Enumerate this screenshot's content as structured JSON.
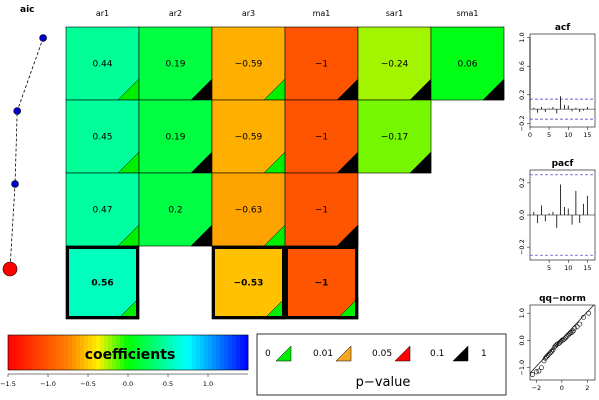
{
  "chart_data": {
    "type": "heatmap",
    "title": "aic",
    "columns": [
      "ar1",
      "ar2",
      "ar3",
      "ma1",
      "sar1",
      "sma1"
    ],
    "rows": [
      {
        "values": [
          0.44,
          0.19,
          -0.59,
          -1,
          -0.24,
          0.06
        ],
        "pvalue_class": [
          "0-0.01",
          "0.1-1",
          "0-0.01",
          "0.1-1",
          "0.1-1",
          "0.1-1"
        ]
      },
      {
        "values": [
          0.45,
          0.19,
          -0.59,
          -1,
          -0.17,
          null
        ],
        "pvalue_class": [
          "0-0.01",
          "0.1-1",
          "0-0.01",
          "0.1-1",
          "0.1-1",
          null
        ]
      },
      {
        "values": [
          0.47,
          0.2,
          -0.63,
          -1,
          null,
          null
        ],
        "pvalue_class": [
          "0-0.01",
          "0.1-1",
          "0-0.01",
          "0.1-1",
          null,
          null
        ]
      },
      {
        "values": [
          0.56,
          null,
          -0.53,
          -1,
          null,
          null
        ],
        "pvalue_class": [
          "0-0.01",
          null,
          "0-0.01",
          "0-0.01",
          null,
          null
        ],
        "best": true
      }
    ],
    "aic_path": {
      "relative_values": [
        0.92,
        0.2,
        0.14,
        0.0
      ]
    },
    "coefficient_legend": {
      "label": "coefficients",
      "range": [
        -1.5,
        1.5
      ],
      "ticks": [
        "−1.5",
        "−1.0",
        "−0.5",
        "0.0",
        "0.5",
        "1.0"
      ],
      "tick_values": [
        -1.5,
        -1.0,
        -0.5,
        0.0,
        0.5,
        1.0
      ]
    },
    "pvalue_legend": {
      "label": "p−value",
      "breaks": [
        "0",
        "0.01",
        "0.05",
        "0.1",
        "1"
      ],
      "colors": [
        "#00ee00",
        "#f5a623",
        "#ff0000",
        "#000000"
      ]
    },
    "acf": {
      "title": "acf",
      "y_ticks": [
        "1.0",
        "0.6",
        "0.2",
        "−0.2"
      ],
      "y_tick_values": [
        1.0,
        0.6,
        0.2,
        -0.2
      ],
      "ylim": [
        -0.25,
        1.05
      ],
      "x_ticks": [
        "0",
        "5",
        "10",
        "15"
      ],
      "x_tick_values": [
        0,
        5,
        10,
        15
      ],
      "xlim": [
        0,
        17
      ],
      "conf_band": 0.14,
      "values": [
        1.0,
        0.02,
        -0.05,
        0.03,
        -0.04,
        0.01,
        0.03,
        -0.06,
        0.18,
        0.06,
        0.05,
        -0.03,
        0.02,
        -0.04,
        -0.02,
        0.03
      ]
    },
    "pacf": {
      "title": "pacf",
      "y_ticks": [
        "0.2",
        "0.0",
        "−0.2"
      ],
      "y_tick_values": [
        0.2,
        0.0,
        -0.2
      ],
      "ylim": [
        -0.28,
        0.28
      ],
      "x_ticks": [
        "5",
        "10",
        "15"
      ],
      "x_tick_values": [
        5,
        10,
        15
      ],
      "xlim": [
        0,
        17
      ],
      "conf_band": 0.25,
      "values": [
        0.02,
        -0.05,
        0.06,
        -0.04,
        0.01,
        0.02,
        -0.08,
        0.19,
        0.05,
        0.04,
        -0.06,
        0.15,
        -0.05,
        0.07,
        0.12
      ]
    },
    "qqnorm": {
      "title": "qq−norm",
      "x_ticks": [
        "−2",
        "0",
        "2"
      ],
      "x_tick_values": [
        -2,
        0,
        2
      ],
      "y_ticks": [
        "−1.0",
        "0.0",
        "1.0"
      ],
      "y_tick_values": [
        -1.0,
        0.0,
        1.0
      ],
      "xlim": [
        -2.5,
        2.6
      ],
      "ylim": [
        -1.45,
        1.3
      ],
      "line": {
        "slope": 0.5,
        "intercept": 0.05
      },
      "points": [
        [
          -2.3,
          -1.25
        ],
        [
          -2.0,
          -1.15
        ],
        [
          -1.8,
          -1.12
        ],
        [
          -1.6,
          -1.0
        ],
        [
          -1.4,
          -0.75
        ],
        [
          -1.3,
          -0.65
        ],
        [
          -1.2,
          -0.6
        ],
        [
          -1.1,
          -0.55
        ],
        [
          -1.0,
          -0.5
        ],
        [
          -0.9,
          -0.45
        ],
        [
          -0.8,
          -0.4
        ],
        [
          -0.7,
          -0.35
        ],
        [
          -0.6,
          -0.25
        ],
        [
          -0.5,
          -0.2
        ],
        [
          -0.4,
          -0.15
        ],
        [
          -0.3,
          -0.12
        ],
        [
          -0.2,
          -0.1
        ],
        [
          -0.1,
          -0.05
        ],
        [
          0.0,
          0.0
        ],
        [
          0.1,
          0.02
        ],
        [
          0.2,
          0.05
        ],
        [
          0.3,
          0.1
        ],
        [
          0.4,
          0.15
        ],
        [
          0.5,
          0.2
        ],
        [
          0.6,
          0.25
        ],
        [
          0.7,
          0.28
        ],
        [
          0.8,
          0.3
        ],
        [
          0.9,
          0.35
        ],
        [
          1.0,
          0.45
        ],
        [
          1.2,
          0.5
        ],
        [
          1.4,
          0.6
        ],
        [
          1.7,
          0.85
        ],
        [
          2.1,
          1.0
        ]
      ]
    }
  }
}
